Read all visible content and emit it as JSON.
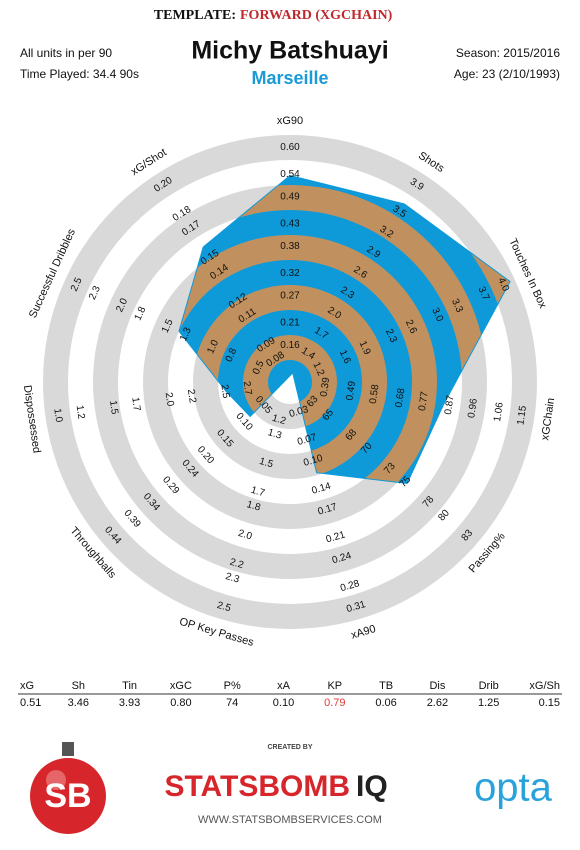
{
  "header": {
    "template_label": "TEMPLATE:",
    "template": "FORWARD (XGCHAIN)",
    "player": "Michy Batshuayi",
    "team": "Marseille",
    "units": "All units in per 90",
    "time_played": "Time Played: 34.4 90s",
    "season": "Season: 2015/2016",
    "age": "Age: 23 (2/10/1993)"
  },
  "chart_data": {
    "type": "radar",
    "categories": [
      "xG90",
      "Shots",
      "Touches In Box",
      "xGChain",
      "Passing%",
      "xA90",
      "OP Key Passes",
      "Throughballs",
      "Dispossessed",
      "Successful Dribbles",
      "xG/Shot"
    ],
    "short_labels": [
      "xG",
      "Sh",
      "Tin",
      "xGC",
      "P%",
      "xA",
      "KP",
      "TB",
      "Dis",
      "Drib",
      "xG/Sh"
    ],
    "values": [
      0.51,
      3.46,
      3.93,
      0.8,
      74,
      0.1,
      0.79,
      0.06,
      2.62,
      1.25,
      0.15
    ],
    "value_labels": [
      "0.51",
      "3.46",
      "3.93",
      "0.80",
      "74",
      "0.10",
      "0.79",
      "0.06",
      "2.62",
      "1.25",
      "0.15"
    ],
    "highlight_index": 6,
    "colors": {
      "fill_a": "#0e99d9",
      "fill_b": "#c0915e",
      "ring": "#d9d9d9",
      "highlight": "#e03c31"
    },
    "axes": [
      {
        "lim": [
          0.1,
          0.6
        ],
        "ticks": [
          0.16,
          0.21,
          0.27,
          0.32,
          0.38,
          0.43,
          0.49,
          0.54,
          {
            "value": 0.6,
            "label": "0.60"
          }
        ]
      },
      {
        "lim": [
          1.1,
          3.9
        ],
        "ticks": [
          1.4,
          1.7,
          {
            "value": 2,
            "label": "2.0"
          },
          2.3,
          2.6,
          2.9,
          3.2,
          3.5,
          3.9
        ]
      },
      {
        "lim": [
          0.9,
          4.0
        ],
        "ticks": [
          1.2,
          1.6,
          1.9,
          2.3,
          2.6,
          {
            "value": 3,
            "label": "3.0"
          },
          3.3,
          3.7,
          {
            "value": 4,
            "label": "4.0"
          }
        ]
      },
      {
        "lim": [
          0.29,
          1.15
        ],
        "ticks": [
          0.39,
          0.49,
          0.58,
          0.68,
          0.77,
          0.87,
          0.96,
          1.06,
          1.15
        ]
      },
      {
        "lim": [
          61,
          83
        ],
        "ticks": [
          63,
          65,
          68,
          70,
          73,
          75,
          78,
          80,
          83
        ]
      },
      {
        "lim": [
          0,
          0.31
        ],
        "ticks": [
          0.03,
          0.07,
          {
            "value": 0.1,
            "label": "0.10"
          },
          0.14,
          0.17,
          0.21,
          0.24,
          0.28,
          0.31
        ]
      },
      {
        "lim": [
          1.0,
          2.5
        ],
        "ticks": [
          1.2,
          1.3,
          1.5,
          1.7,
          1.8,
          {
            "value": 2,
            "label": "2.0"
          },
          2.2,
          2.3,
          2.5
        ]
      },
      {
        "lim": [
          0,
          0.44
        ],
        "ticks": [
          0.05,
          {
            "value": 0.1,
            "label": "0.10"
          },
          0.15,
          {
            "value": 0.2,
            "label": "0.20"
          },
          0.24,
          0.29,
          0.34,
          0.39,
          0.44
        ]
      },
      {
        "lim": [
          3.0,
          1.0
        ],
        "ticks": [
          2.7,
          2.5,
          2.2,
          {
            "value": 2,
            "label": "2.0"
          },
          1.7,
          1.5,
          1.2,
          {
            "value": 1,
            "label": "1.0"
          }
        ]
      },
      {
        "lim": [
          0.25,
          2.5
        ],
        "ticks": [
          0.5,
          0.8,
          {
            "value": 1,
            "label": "1.0"
          },
          1.3,
          1.5,
          1.8,
          {
            "value": 2,
            "label": "2.0"
          },
          2.3,
          2.5
        ]
      },
      {
        "lim": [
          0.07,
          0.2
        ],
        "ticks": [
          0.08,
          0.09,
          0.11,
          0.12,
          0.14,
          0.15,
          0.17,
          0.18,
          {
            "value": 0.2,
            "label": "0.20"
          }
        ]
      }
    ]
  },
  "footer": {
    "created_by": "CREATED BY",
    "brand_a": "STATSBOMB",
    "brand_b": "IQ",
    "url": "WWW.STATSBOMBSERVICES.COM",
    "partner": "opta",
    "logo": "SB"
  }
}
